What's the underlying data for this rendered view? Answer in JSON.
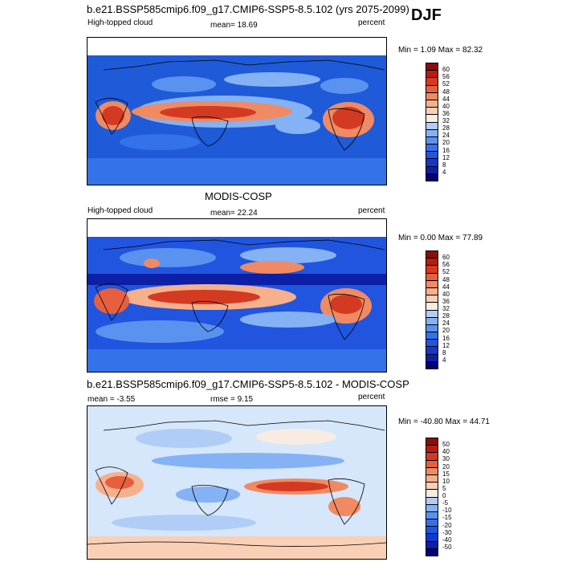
{
  "season": "DJF",
  "colors": {
    "abs_scale": [
      "#06007a",
      "#0c1fa6",
      "#1437cc",
      "#2155e0",
      "#3472ea",
      "#5a92f0",
      "#84b2f5",
      "#b0cdf8",
      "#d6e6fb",
      "#f8ece2",
      "#f9cfb6",
      "#f6b08c",
      "#ef8a63",
      "#e6603f",
      "#d43a22",
      "#b71c12",
      "#8c0d08"
    ],
    "diff_scale": [
      "#06007a",
      "#0c1fa6",
      "#1437cc",
      "#2155e0",
      "#3472ea",
      "#5a92f0",
      "#84b2f5",
      "#b0cdf8",
      "#d6e6fb",
      "#f8ece2",
      "#f9cfb6",
      "#f6b08c",
      "#ef8a63",
      "#e6603f",
      "#d43a22",
      "#b71c12",
      "#8c0d08"
    ]
  },
  "panels": [
    {
      "id": "model",
      "title": "b.e21.BSSP585cmip6.f09_g17.CMIP6-SSP5-8.5.102 (yrs 2075-2099)",
      "left_label": "High-topped cloud",
      "center_label": "mean=  18.69",
      "right_label": "percent",
      "minmax": "Min =   1.09 Max =   82.32",
      "colorbar_labels": [
        "60",
        "56",
        "52",
        "48",
        "44",
        "40",
        "36",
        "32",
        "28",
        "24",
        "20",
        "16",
        "12",
        "8",
        "4"
      ]
    },
    {
      "id": "obs",
      "title": "MODIS-COSP",
      "left_label": "High-topped cloud",
      "center_label": "mean=  22.24",
      "right_label": "percent",
      "minmax": "Min =   0.00 Max =   77.89",
      "colorbar_labels": [
        "60",
        "56",
        "52",
        "48",
        "44",
        "40",
        "36",
        "32",
        "28",
        "24",
        "20",
        "16",
        "12",
        "8",
        "4"
      ]
    },
    {
      "id": "diff",
      "title": "b.e21.BSSP585cmip6.f09_g17.CMIP6-SSP5-8.5.102 - MODIS-COSP",
      "left_label": "mean =  -3.55",
      "center_label": "rmse =   9.15",
      "right_label": "percent",
      "minmax": "Min = -40.80 Max =  44.71",
      "colorbar_labels": [
        "50",
        "40",
        "30",
        "20",
        "15",
        "10",
        "5",
        "0",
        "-5",
        "-10",
        "-15",
        "-20",
        "-30",
        "-40",
        "-50"
      ]
    }
  ]
}
